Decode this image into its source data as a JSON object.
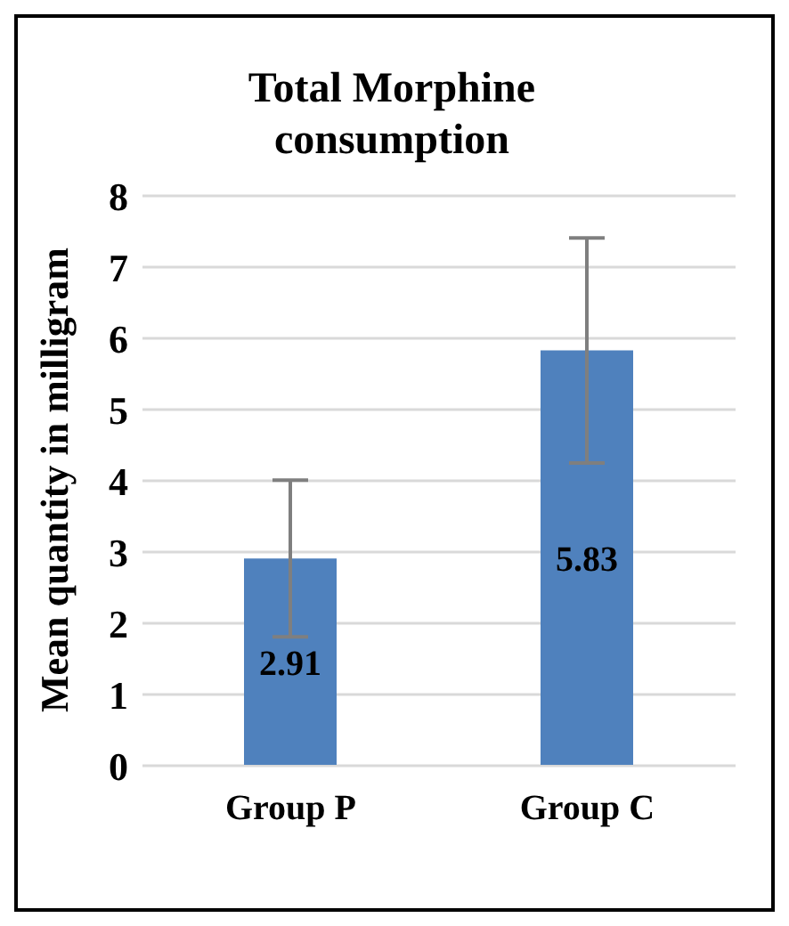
{
  "chart_data": {
    "type": "bar",
    "title": "Total Morphine consumption",
    "ylabel": "Mean quantity in milligram",
    "categories": [
      "Group P",
      "Group C"
    ],
    "values": [
      2.91,
      5.83
    ],
    "errors": [
      1.1,
      1.58
    ],
    "color": "#4f81bd",
    "ylim": [
      0,
      8
    ],
    "yticks": [
      0,
      1,
      2,
      3,
      4,
      5,
      6,
      7,
      8
    ],
    "grid": "y",
    "data_labels": true
  }
}
